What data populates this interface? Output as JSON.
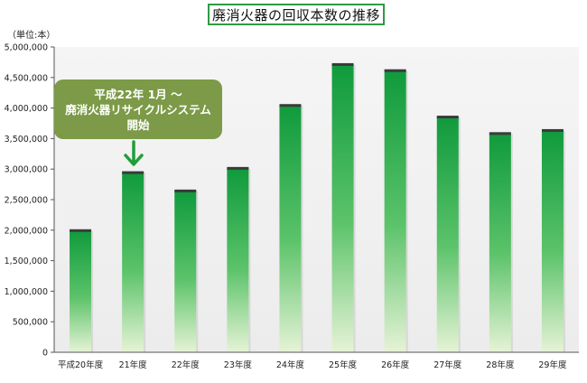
{
  "chart_data": {
    "type": "bar",
    "title": "廃消火器の回収本数の推移",
    "unit_label": "（単位:本）",
    "categories": [
      "平成20年度",
      "21年度",
      "22年度",
      "23年度",
      "24年度",
      "25年度",
      "26年度",
      "27年度",
      "28年度",
      "29年度"
    ],
    "values": [
      2000000,
      2950000,
      2650000,
      3020000,
      4050000,
      4720000,
      4620000,
      3860000,
      3590000,
      3640000
    ],
    "ylim": [
      0,
      5000000
    ],
    "yticks": [
      0,
      500000,
      1000000,
      1500000,
      2000000,
      2500000,
      3000000,
      3500000,
      4000000,
      4500000,
      5000000
    ],
    "ytick_labels": [
      "0",
      "500,000",
      "1,000,000",
      "1,500,000",
      "2,000,000",
      "2,500,000",
      "3,000,000",
      "3,500,000",
      "4,000,000",
      "4,500,000",
      "5,000,000"
    ],
    "grid": false,
    "annotation": {
      "lines": [
        "平成22年 1月 ～",
        "廃消火器リサイクルシステム",
        "開始"
      ],
      "points_to": "21年度"
    },
    "colors": {
      "bar_top": "#0f9a3c",
      "bar_mid": "#5cc36a",
      "bar_bottom": "#e6f3d6",
      "plot_background": "#f3f3f3",
      "title_border": "#2f9a46",
      "callout_fill": "#7c9a47",
      "arrow": "#1f9e3a"
    }
  }
}
